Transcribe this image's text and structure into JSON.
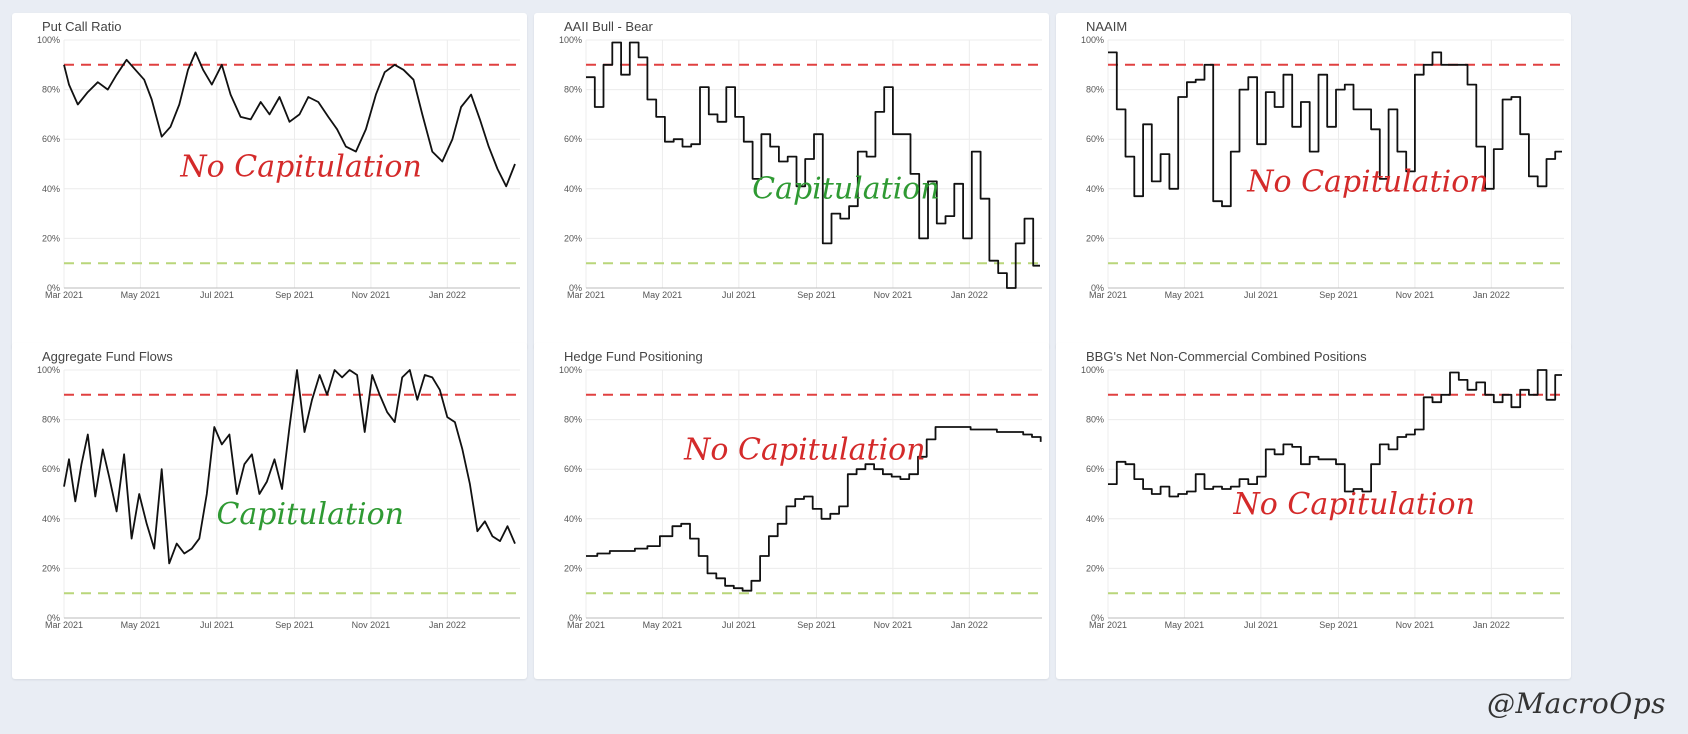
{
  "chart_data": [
    {
      "type": "line",
      "title": "Put Call Ratio",
      "verdict": "No Capitulation",
      "verdict_color": "#d42a2a",
      "ylim": [
        0,
        1
      ],
      "yticks": [
        "0%",
        "20%",
        "40%",
        "60%",
        "80%",
        "100%"
      ],
      "xlim": [
        "2021-03-01",
        "2022-02-28"
      ],
      "xticks": [
        "Mar 2021",
        "May 2021",
        "Jul 2021",
        "Sep 2021",
        "Nov 2021",
        "Jan 2022"
      ],
      "thresholds": [
        {
          "value": 0.9,
          "color": "#e04040"
        },
        {
          "value": 0.1,
          "color": "#b9d67a"
        }
      ],
      "step": false,
      "series": [
        {
          "x": [
            "2021-03-01",
            "2021-03-05",
            "2021-03-12",
            "2021-03-20",
            "2021-03-28",
            "2021-04-05",
            "2021-04-12",
            "2021-04-20",
            "2021-04-27",
            "2021-05-04",
            "2021-05-10",
            "2021-05-18",
            "2021-05-25",
            "2021-06-01",
            "2021-06-08",
            "2021-06-14",
            "2021-06-20",
            "2021-06-27",
            "2021-07-05",
            "2021-07-12",
            "2021-07-20",
            "2021-07-28",
            "2021-08-05",
            "2021-08-12",
            "2021-08-20",
            "2021-08-28",
            "2021-09-05",
            "2021-09-12",
            "2021-09-20",
            "2021-09-28",
            "2021-10-05",
            "2021-10-12",
            "2021-10-20",
            "2021-10-28",
            "2021-11-05",
            "2021-11-12",
            "2021-11-20",
            "2021-11-27",
            "2021-12-05",
            "2021-12-12",
            "2021-12-20",
            "2021-12-28",
            "2022-01-05",
            "2022-01-12",
            "2022-01-20",
            "2022-01-27",
            "2022-02-03",
            "2022-02-10",
            "2022-02-17",
            "2022-02-24"
          ],
          "y": [
            0.9,
            0.82,
            0.74,
            0.79,
            0.83,
            0.8,
            0.86,
            0.92,
            0.88,
            0.84,
            0.76,
            0.61,
            0.65,
            0.74,
            0.88,
            0.95,
            0.88,
            0.82,
            0.9,
            0.78,
            0.69,
            0.68,
            0.75,
            0.7,
            0.77,
            0.67,
            0.7,
            0.77,
            0.75,
            0.69,
            0.64,
            0.57,
            0.55,
            0.64,
            0.78,
            0.87,
            0.9,
            0.88,
            0.84,
            0.7,
            0.55,
            0.51,
            0.6,
            0.73,
            0.78,
            0.68,
            0.57,
            0.48,
            0.41,
            0.5
          ]
        }
      ]
    },
    {
      "type": "line",
      "title": "AAII Bull - Bear",
      "verdict": "Capitulation",
      "verdict_color": "#2f9a33",
      "ylim": [
        0,
        1
      ],
      "yticks": [
        "0%",
        "20%",
        "40%",
        "60%",
        "80%",
        "100%"
      ],
      "xlim": [
        "2021-03-01",
        "2022-02-28"
      ],
      "xticks": [
        "Mar 2021",
        "May 2021",
        "Jul 2021",
        "Sep 2021",
        "Nov 2021",
        "Jan 2022"
      ],
      "thresholds": [
        {
          "value": 0.9,
          "color": "#e04040"
        },
        {
          "value": 0.1,
          "color": "#b9d67a"
        }
      ],
      "step": true,
      "series": [
        {
          "x": [
            "2021-03-01",
            "2021-03-08",
            "2021-03-15",
            "2021-03-22",
            "2021-03-29",
            "2021-04-05",
            "2021-04-12",
            "2021-04-19",
            "2021-04-26",
            "2021-05-03",
            "2021-05-10",
            "2021-05-17",
            "2021-05-24",
            "2021-05-31",
            "2021-06-07",
            "2021-06-14",
            "2021-06-21",
            "2021-06-28",
            "2021-07-05",
            "2021-07-12",
            "2021-07-19",
            "2021-07-26",
            "2021-08-02",
            "2021-08-09",
            "2021-08-16",
            "2021-08-23",
            "2021-08-30",
            "2021-09-06",
            "2021-09-13",
            "2021-09-20",
            "2021-09-27",
            "2021-10-04",
            "2021-10-11",
            "2021-10-18",
            "2021-10-25",
            "2021-11-01",
            "2021-11-08",
            "2021-11-15",
            "2021-11-22",
            "2021-11-29",
            "2021-12-06",
            "2021-12-13",
            "2021-12-20",
            "2021-12-27",
            "2022-01-03",
            "2022-01-10",
            "2022-01-17",
            "2022-01-24",
            "2022-01-31",
            "2022-02-07",
            "2022-02-14",
            "2022-02-21"
          ],
          "y": [
            0.85,
            0.73,
            0.9,
            0.99,
            0.86,
            0.99,
            0.93,
            0.76,
            0.69,
            0.59,
            0.6,
            0.57,
            0.58,
            0.81,
            0.7,
            0.67,
            0.81,
            0.69,
            0.59,
            0.44,
            0.62,
            0.57,
            0.51,
            0.53,
            0.41,
            0.52,
            0.62,
            0.18,
            0.3,
            0.28,
            0.33,
            0.55,
            0.53,
            0.71,
            0.81,
            0.62,
            0.62,
            0.46,
            0.2,
            0.43,
            0.26,
            0.29,
            0.42,
            0.2,
            0.55,
            0.36,
            0.11,
            0.06,
            0.0,
            0.18,
            0.28,
            0.09
          ]
        }
      ]
    },
    {
      "type": "line",
      "title": "NAAIM",
      "verdict": "No Capitulation",
      "verdict_color": "#d42a2a",
      "ylim": [
        0,
        1
      ],
      "yticks": [
        "0%",
        "20%",
        "40%",
        "60%",
        "80%",
        "100%"
      ],
      "xlim": [
        "2021-03-01",
        "2022-02-28"
      ],
      "xticks": [
        "Mar 2021",
        "May 2021",
        "Jul 2021",
        "Sep 2021",
        "Nov 2021",
        "Jan 2022"
      ],
      "thresholds": [
        {
          "value": 0.9,
          "color": "#e04040"
        },
        {
          "value": 0.1,
          "color": "#b9d67a"
        }
      ],
      "step": true,
      "series": [
        {
          "x": [
            "2021-03-01",
            "2021-03-08",
            "2021-03-15",
            "2021-03-22",
            "2021-03-29",
            "2021-04-05",
            "2021-04-12",
            "2021-04-19",
            "2021-04-26",
            "2021-05-03",
            "2021-05-10",
            "2021-05-17",
            "2021-05-24",
            "2021-05-31",
            "2021-06-07",
            "2021-06-14",
            "2021-06-21",
            "2021-06-28",
            "2021-07-05",
            "2021-07-12",
            "2021-07-19",
            "2021-07-26",
            "2021-08-02",
            "2021-08-09",
            "2021-08-16",
            "2021-08-23",
            "2021-08-30",
            "2021-09-06",
            "2021-09-13",
            "2021-09-20",
            "2021-09-27",
            "2021-10-04",
            "2021-10-11",
            "2021-10-18",
            "2021-10-25",
            "2021-11-01",
            "2021-11-08",
            "2021-11-15",
            "2021-11-22",
            "2021-11-29",
            "2021-12-06",
            "2021-12-13",
            "2021-12-20",
            "2021-12-27",
            "2022-01-03",
            "2022-01-10",
            "2022-01-17",
            "2022-01-24",
            "2022-01-31",
            "2022-02-07",
            "2022-02-14",
            "2022-02-21"
          ],
          "y": [
            0.95,
            0.72,
            0.53,
            0.37,
            0.66,
            0.43,
            0.54,
            0.4,
            0.77,
            0.83,
            0.84,
            0.9,
            0.35,
            0.33,
            0.55,
            0.8,
            0.85,
            0.58,
            0.79,
            0.73,
            0.86,
            0.65,
            0.75,
            0.55,
            0.86,
            0.65,
            0.8,
            0.82,
            0.72,
            0.72,
            0.64,
            0.44,
            0.72,
            0.55,
            0.47,
            0.86,
            0.9,
            0.95,
            0.9,
            0.9,
            0.9,
            0.82,
            0.57,
            0.4,
            0.56,
            0.76,
            0.77,
            0.62,
            0.45,
            0.41,
            0.52,
            0.55
          ]
        }
      ]
    },
    {
      "type": "line",
      "title": "Aggregate Fund Flows",
      "verdict": "Capitulation",
      "verdict_color": "#2f9a33",
      "ylim": [
        0,
        1
      ],
      "yticks": [
        "0%",
        "20%",
        "40%",
        "60%",
        "80%",
        "100%"
      ],
      "xlim": [
        "2021-03-01",
        "2022-02-28"
      ],
      "xticks": [
        "Mar 2021",
        "May 2021",
        "Jul 2021",
        "Sep 2021",
        "Nov 2021",
        "Jan 2022"
      ],
      "thresholds": [
        {
          "value": 0.9,
          "color": "#e04040"
        },
        {
          "value": 0.1,
          "color": "#b9d67a"
        }
      ],
      "step": false,
      "series": [
        {
          "x": [
            "2021-03-01",
            "2021-03-05",
            "2021-03-10",
            "2021-03-15",
            "2021-03-20",
            "2021-03-26",
            "2021-04-01",
            "2021-04-06",
            "2021-04-12",
            "2021-04-18",
            "2021-04-24",
            "2021-04-30",
            "2021-05-06",
            "2021-05-12",
            "2021-05-18",
            "2021-05-24",
            "2021-05-30",
            "2021-06-05",
            "2021-06-11",
            "2021-06-17",
            "2021-06-23",
            "2021-06-29",
            "2021-07-05",
            "2021-07-11",
            "2021-07-17",
            "2021-07-23",
            "2021-07-29",
            "2021-08-04",
            "2021-08-10",
            "2021-08-16",
            "2021-08-22",
            "2021-08-28",
            "2021-09-03",
            "2021-09-09",
            "2021-09-15",
            "2021-09-21",
            "2021-09-27",
            "2021-10-03",
            "2021-10-09",
            "2021-10-15",
            "2021-10-21",
            "2021-10-27",
            "2021-11-02",
            "2021-11-08",
            "2021-11-14",
            "2021-11-20",
            "2021-11-26",
            "2021-12-02",
            "2021-12-08",
            "2021-12-14",
            "2021-12-20",
            "2021-12-26",
            "2022-01-01",
            "2022-01-07",
            "2022-01-13",
            "2022-01-19",
            "2022-01-25",
            "2022-01-31",
            "2022-02-06",
            "2022-02-12",
            "2022-02-18",
            "2022-02-24"
          ],
          "y": [
            0.53,
            0.64,
            0.47,
            0.62,
            0.74,
            0.49,
            0.68,
            0.57,
            0.43,
            0.66,
            0.32,
            0.5,
            0.38,
            0.28,
            0.6,
            0.22,
            0.3,
            0.26,
            0.28,
            0.32,
            0.5,
            0.77,
            0.7,
            0.74,
            0.5,
            0.62,
            0.66,
            0.5,
            0.55,
            0.64,
            0.52,
            0.77,
            1.0,
            0.75,
            0.88,
            0.98,
            0.9,
            1.0,
            0.97,
            1.0,
            0.98,
            0.75,
            0.98,
            0.9,
            0.83,
            0.79,
            0.97,
            1.0,
            0.88,
            0.98,
            0.97,
            0.92,
            0.81,
            0.79,
            0.68,
            0.54,
            0.35,
            0.39,
            0.33,
            0.31,
            0.37,
            0.3
          ]
        }
      ]
    },
    {
      "type": "line",
      "title": "Hedge Fund Positioning",
      "verdict": "No Capitulation",
      "verdict_color": "#d42a2a",
      "ylim": [
        0,
        1
      ],
      "yticks": [
        "0%",
        "20%",
        "40%",
        "60%",
        "80%",
        "100%"
      ],
      "xlim": [
        "2021-03-01",
        "2022-02-28"
      ],
      "xticks": [
        "Mar 2021",
        "May 2021",
        "Jul 2021",
        "Sep 2021",
        "Nov 2021",
        "Jan 2022"
      ],
      "thresholds": [
        {
          "value": 0.9,
          "color": "#e04040"
        },
        {
          "value": 0.1,
          "color": "#b9d67a"
        }
      ],
      "step": true,
      "series": [
        {
          "x": [
            "2021-03-01",
            "2021-03-10",
            "2021-03-20",
            "2021-03-30",
            "2021-04-09",
            "2021-04-19",
            "2021-04-29",
            "2021-05-09",
            "2021-05-16",
            "2021-05-23",
            "2021-05-30",
            "2021-06-06",
            "2021-06-13",
            "2021-06-20",
            "2021-06-27",
            "2021-07-04",
            "2021-07-11",
            "2021-07-18",
            "2021-07-25",
            "2021-08-01",
            "2021-08-08",
            "2021-08-15",
            "2021-08-22",
            "2021-08-29",
            "2021-09-05",
            "2021-09-12",
            "2021-09-19",
            "2021-09-26",
            "2021-10-03",
            "2021-10-10",
            "2021-10-17",
            "2021-10-24",
            "2021-10-31",
            "2021-11-07",
            "2021-11-14",
            "2021-11-21",
            "2021-11-28",
            "2021-12-05",
            "2021-12-12",
            "2021-12-19",
            "2021-12-26",
            "2022-01-02",
            "2022-01-09",
            "2022-01-16",
            "2022-01-23",
            "2022-01-30",
            "2022-02-06",
            "2022-02-13",
            "2022-02-20",
            "2022-02-27"
          ],
          "y": [
            0.25,
            0.26,
            0.27,
            0.27,
            0.28,
            0.29,
            0.33,
            0.37,
            0.38,
            0.32,
            0.25,
            0.18,
            0.16,
            0.13,
            0.12,
            0.11,
            0.15,
            0.25,
            0.33,
            0.38,
            0.45,
            0.48,
            0.49,
            0.44,
            0.4,
            0.42,
            0.45,
            0.58,
            0.6,
            0.62,
            0.6,
            0.58,
            0.57,
            0.56,
            0.58,
            0.65,
            0.72,
            0.77,
            0.77,
            0.77,
            0.77,
            0.76,
            0.76,
            0.76,
            0.75,
            0.75,
            0.75,
            0.74,
            0.73,
            0.71
          ]
        }
      ]
    },
    {
      "type": "line",
      "title": "BBG's Net Non-Commercial Combined Positions",
      "verdict": "No Capitulation",
      "verdict_color": "#d42a2a",
      "ylim": [
        0,
        1
      ],
      "yticks": [
        "0%",
        "20%",
        "40%",
        "60%",
        "80%",
        "100%"
      ],
      "xlim": [
        "2021-03-01",
        "2022-02-28"
      ],
      "xticks": [
        "Mar 2021",
        "May 2021",
        "Jul 2021",
        "Sep 2021",
        "Nov 2021",
        "Jan 2022"
      ],
      "thresholds": [
        {
          "value": 0.9,
          "color": "#e04040"
        },
        {
          "value": 0.1,
          "color": "#b9d67a"
        }
      ],
      "step": true,
      "series": [
        {
          "x": [
            "2021-03-01",
            "2021-03-08",
            "2021-03-15",
            "2021-03-22",
            "2021-03-29",
            "2021-04-05",
            "2021-04-12",
            "2021-04-19",
            "2021-04-26",
            "2021-05-03",
            "2021-05-10",
            "2021-05-17",
            "2021-05-24",
            "2021-05-31",
            "2021-06-07",
            "2021-06-14",
            "2021-06-21",
            "2021-06-28",
            "2021-07-05",
            "2021-07-12",
            "2021-07-19",
            "2021-07-26",
            "2021-08-02",
            "2021-08-09",
            "2021-08-16",
            "2021-08-23",
            "2021-08-30",
            "2021-09-06",
            "2021-09-13",
            "2021-09-20",
            "2021-09-27",
            "2021-10-04",
            "2021-10-11",
            "2021-10-18",
            "2021-10-25",
            "2021-11-01",
            "2021-11-08",
            "2021-11-15",
            "2021-11-22",
            "2021-11-29",
            "2021-12-06",
            "2021-12-13",
            "2021-12-20",
            "2021-12-27",
            "2022-01-03",
            "2022-01-10",
            "2022-01-17",
            "2022-01-24",
            "2022-01-31",
            "2022-02-07",
            "2022-02-14",
            "2022-02-21"
          ],
          "y": [
            0.54,
            0.63,
            0.62,
            0.56,
            0.52,
            0.5,
            0.53,
            0.49,
            0.5,
            0.51,
            0.58,
            0.52,
            0.53,
            0.52,
            0.53,
            0.56,
            0.54,
            0.57,
            0.68,
            0.66,
            0.7,
            0.69,
            0.62,
            0.65,
            0.64,
            0.64,
            0.62,
            0.51,
            0.52,
            0.51,
            0.62,
            0.7,
            0.68,
            0.73,
            0.74,
            0.76,
            0.89,
            0.87,
            0.9,
            0.99,
            0.96,
            0.92,
            0.95,
            0.9,
            0.87,
            0.9,
            0.85,
            0.92,
            0.9,
            1.0,
            0.88,
            0.98
          ]
        }
      ]
    }
  ],
  "watermark": "@MacroOps"
}
